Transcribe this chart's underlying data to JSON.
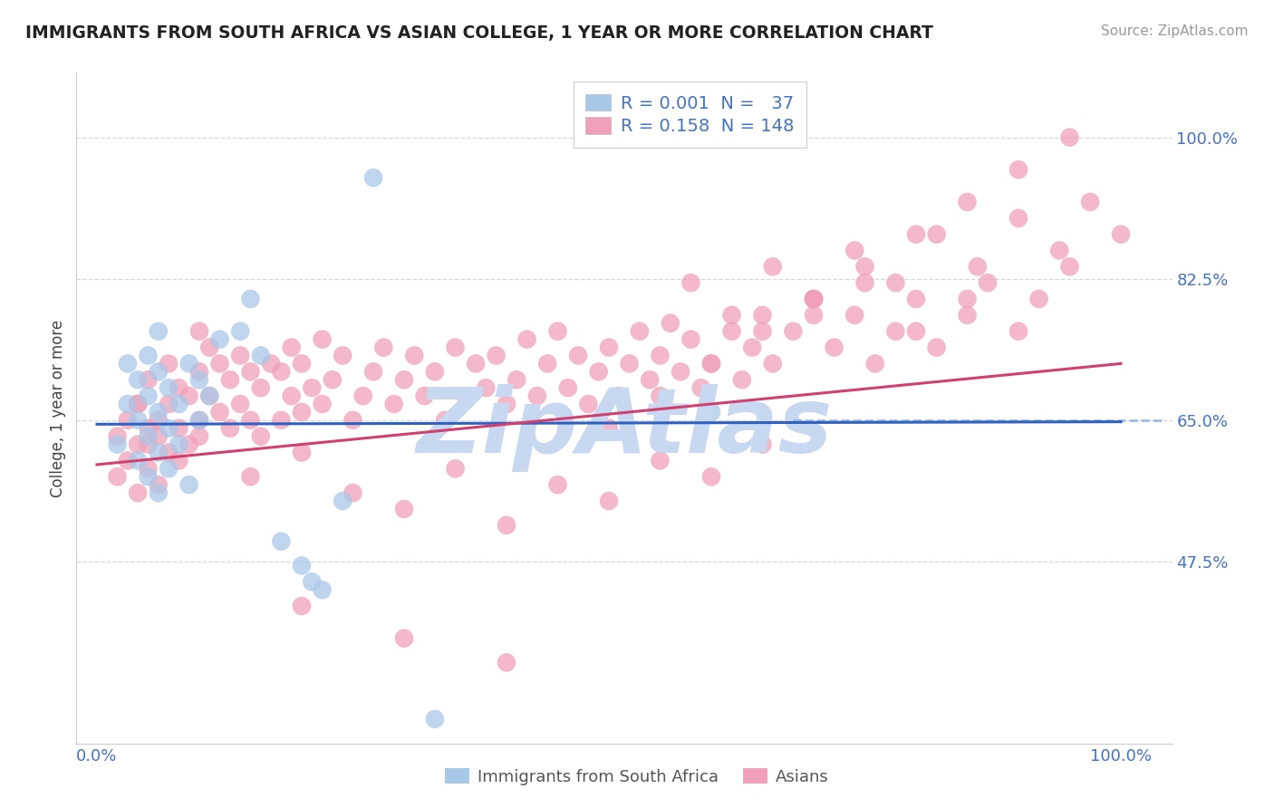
{
  "title": "IMMIGRANTS FROM SOUTH AFRICA VS ASIAN COLLEGE, 1 YEAR OR MORE CORRELATION CHART",
  "source_text": "Source: ZipAtlas.com",
  "ylabel": "College, 1 year or more",
  "yticks": [
    0.475,
    0.65,
    0.825,
    1.0
  ],
  "ytick_labels": [
    "47.5%",
    "65.0%",
    "82.5%",
    "100.0%"
  ],
  "blue_color": "#a8c8e8",
  "pink_color": "#f0a0b8",
  "trend_blue_color": "#3060c0",
  "trend_pink_color": "#d04070",
  "dashed_color": "#90b8e0",
  "axis_color": "#4472c4",
  "watermark_color": "#c8d8f0",
  "blue_x": [
    0.02,
    0.03,
    0.03,
    0.04,
    0.04,
    0.04,
    0.05,
    0.05,
    0.05,
    0.05,
    0.06,
    0.06,
    0.06,
    0.06,
    0.06,
    0.07,
    0.07,
    0.07,
    0.08,
    0.08,
    0.09,
    0.09,
    0.1,
    0.1,
    0.11,
    0.12,
    0.14,
    0.15,
    0.16,
    0.18,
    0.2,
    0.21,
    0.22,
    0.24,
    0.27,
    0.6,
    0.33
  ],
  "blue_y": [
    0.62,
    0.67,
    0.72,
    0.6,
    0.65,
    0.7,
    0.58,
    0.63,
    0.68,
    0.73,
    0.56,
    0.61,
    0.66,
    0.71,
    0.76,
    0.59,
    0.64,
    0.69,
    0.62,
    0.67,
    0.57,
    0.72,
    0.65,
    0.7,
    0.68,
    0.75,
    0.76,
    0.8,
    0.73,
    0.5,
    0.47,
    0.45,
    0.44,
    0.55,
    0.95,
    0.66,
    0.28
  ],
  "pink_x": [
    0.02,
    0.02,
    0.03,
    0.03,
    0.04,
    0.04,
    0.04,
    0.05,
    0.05,
    0.05,
    0.06,
    0.06,
    0.07,
    0.07,
    0.07,
    0.08,
    0.08,
    0.09,
    0.09,
    0.1,
    0.1,
    0.1,
    0.11,
    0.11,
    0.12,
    0.12,
    0.13,
    0.13,
    0.14,
    0.14,
    0.15,
    0.15,
    0.16,
    0.16,
    0.17,
    0.18,
    0.18,
    0.19,
    0.19,
    0.2,
    0.2,
    0.21,
    0.22,
    0.22,
    0.23,
    0.24,
    0.25,
    0.26,
    0.27,
    0.28,
    0.29,
    0.3,
    0.31,
    0.32,
    0.33,
    0.34,
    0.35,
    0.36,
    0.37,
    0.38,
    0.39,
    0.4,
    0.41,
    0.42,
    0.43,
    0.44,
    0.45,
    0.46,
    0.47,
    0.48,
    0.49,
    0.5,
    0.51,
    0.52,
    0.53,
    0.54,
    0.55,
    0.56,
    0.57,
    0.58,
    0.59,
    0.6,
    0.62,
    0.63,
    0.64,
    0.65,
    0.66,
    0.68,
    0.7,
    0.72,
    0.74,
    0.76,
    0.78,
    0.8,
    0.82,
    0.85,
    0.87,
    0.9,
    0.92,
    0.95,
    0.58,
    0.62,
    0.66,
    0.7,
    0.74,
    0.78,
    0.82,
    0.86,
    0.9,
    0.94,
    0.97,
    1.0,
    0.6,
    0.65,
    0.5,
    0.55,
    0.4,
    0.45,
    0.3,
    0.35,
    0.25,
    0.2,
    0.15,
    0.1,
    0.08,
    0.06,
    0.05,
    0.04,
    0.7,
    0.75,
    0.8,
    0.85,
    0.5,
    0.55,
    0.6,
    0.65,
    0.7,
    0.75,
    0.8,
    0.85,
    0.9,
    0.95,
    0.2,
    0.3,
    0.4
  ],
  "pink_y": [
    0.58,
    0.63,
    0.6,
    0.65,
    0.56,
    0.62,
    0.67,
    0.59,
    0.64,
    0.7,
    0.57,
    0.63,
    0.61,
    0.67,
    0.72,
    0.64,
    0.69,
    0.62,
    0.68,
    0.65,
    0.71,
    0.76,
    0.68,
    0.74,
    0.66,
    0.72,
    0.64,
    0.7,
    0.67,
    0.73,
    0.65,
    0.71,
    0.63,
    0.69,
    0.72,
    0.65,
    0.71,
    0.68,
    0.74,
    0.66,
    0.72,
    0.69,
    0.75,
    0.67,
    0.7,
    0.73,
    0.65,
    0.68,
    0.71,
    0.74,
    0.67,
    0.7,
    0.73,
    0.68,
    0.71,
    0.65,
    0.74,
    0.68,
    0.72,
    0.69,
    0.73,
    0.67,
    0.7,
    0.75,
    0.68,
    0.72,
    0.76,
    0.69,
    0.73,
    0.67,
    0.71,
    0.74,
    0.68,
    0.72,
    0.76,
    0.7,
    0.73,
    0.77,
    0.71,
    0.75,
    0.69,
    0.72,
    0.76,
    0.7,
    0.74,
    0.78,
    0.72,
    0.76,
    0.8,
    0.74,
    0.78,
    0.72,
    0.76,
    0.8,
    0.74,
    0.78,
    0.82,
    0.76,
    0.8,
    0.84,
    0.82,
    0.78,
    0.84,
    0.8,
    0.86,
    0.82,
    0.88,
    0.84,
    0.9,
    0.86,
    0.92,
    0.88,
    0.58,
    0.62,
    0.55,
    0.6,
    0.52,
    0.57,
    0.54,
    0.59,
    0.56,
    0.61,
    0.58,
    0.63,
    0.6,
    0.65,
    0.62,
    0.67,
    0.78,
    0.82,
    0.76,
    0.8,
    0.64,
    0.68,
    0.72,
    0.76,
    0.8,
    0.84,
    0.88,
    0.92,
    0.96,
    1.0,
    0.42,
    0.38,
    0.35
  ],
  "blue_trend_x": [
    0.0,
    1.0
  ],
  "blue_trend_y": [
    0.645,
    0.648
  ],
  "pink_trend_x": [
    0.0,
    1.0
  ],
  "pink_trend_y": [
    0.595,
    0.72
  ],
  "dashed_line_y": 0.65,
  "dashed_line_x_start": 0.68,
  "xlim": [
    -0.02,
    1.05
  ],
  "ylim": [
    0.25,
    1.08
  ]
}
